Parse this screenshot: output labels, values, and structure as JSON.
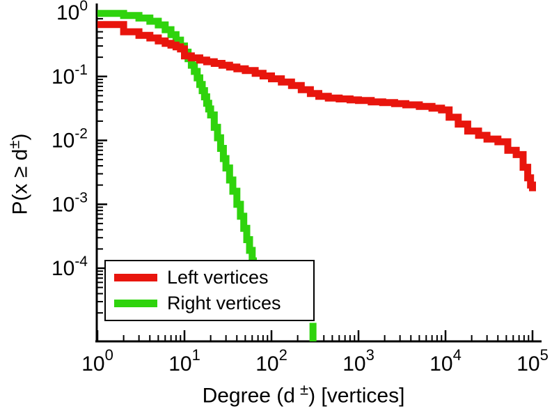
{
  "figure": {
    "background": "#ffffff",
    "axis_color": "#000000",
    "text_color": "#000000"
  },
  "labels": {
    "xlabel_pre": "Degree (d",
    "xlabel_sup": "±",
    "xlabel_post": ") [vertices]",
    "ylabel_pre": "P(x ≥ d",
    "ylabel_sup": "±",
    "ylabel_post": ")"
  },
  "chart_data": {
    "type": "line",
    "subtype": "ccdf-staircase",
    "title": "",
    "xlabel": "Degree (d±) [vertices]",
    "ylabel": "P(x ≥ d±)",
    "x_scale": "log",
    "y_scale": "log",
    "xlim": [
      1,
      100000
    ],
    "ylim": [
      7e-06,
      1
    ],
    "x_tick_exponents": [
      0,
      1,
      2,
      3,
      4,
      5
    ],
    "y_tick_exponents": [
      0,
      -1,
      -2,
      -3,
      -4
    ],
    "grid": false,
    "legend_position": "lower-left",
    "series": [
      {
        "name": "Left vertices",
        "color": "#e8150d",
        "line_width": 10,
        "points": [
          [
            1,
            0.65
          ],
          [
            2,
            0.5
          ],
          [
            3,
            0.44
          ],
          [
            4,
            0.4
          ],
          [
            5,
            0.36
          ],
          [
            6,
            0.33
          ],
          [
            7,
            0.31
          ],
          [
            8,
            0.29
          ],
          [
            9,
            0.27
          ],
          [
            10,
            0.21
          ],
          [
            12,
            0.195
          ],
          [
            15,
            0.18
          ],
          [
            18,
            0.17
          ],
          [
            22,
            0.16
          ],
          [
            27,
            0.15
          ],
          [
            33,
            0.14
          ],
          [
            40,
            0.132
          ],
          [
            50,
            0.124
          ],
          [
            65,
            0.112
          ],
          [
            80,
            0.102
          ],
          [
            100,
            0.092
          ],
          [
            130,
            0.082
          ],
          [
            170,
            0.072
          ],
          [
            220,
            0.062
          ],
          [
            280,
            0.054
          ],
          [
            350,
            0.049
          ],
          [
            450,
            0.046
          ],
          [
            600,
            0.0445
          ],
          [
            800,
            0.043
          ],
          [
            1000,
            0.042
          ],
          [
            1400,
            0.04
          ],
          [
            1900,
            0.039
          ],
          [
            2600,
            0.0375
          ],
          [
            3500,
            0.036
          ],
          [
            5000,
            0.034
          ],
          [
            7000,
            0.032
          ],
          [
            9000,
            0.03
          ],
          [
            11000,
            0.023
          ],
          [
            14000,
            0.018
          ],
          [
            18000,
            0.014
          ],
          [
            24000,
            0.012
          ],
          [
            30000,
            0.0105
          ],
          [
            40000,
            0.0095
          ],
          [
            52000,
            0.007
          ],
          [
            65000,
            0.006
          ],
          [
            78000,
            0.0038
          ],
          [
            88000,
            0.0026
          ],
          [
            95000,
            0.002
          ],
          [
            100000,
            0.0016
          ]
        ]
      },
      {
        "name": "Right vertices",
        "color": "#2fd30d",
        "line_width": 10,
        "points": [
          [
            1,
            0.97
          ],
          [
            2,
            0.9
          ],
          [
            3,
            0.82
          ],
          [
            4,
            0.73
          ],
          [
            5,
            0.64
          ],
          [
            6,
            0.54
          ],
          [
            7,
            0.45
          ],
          [
            8,
            0.37
          ],
          [
            9,
            0.3
          ],
          [
            10,
            0.24
          ],
          [
            11,
            0.19
          ],
          [
            12,
            0.15
          ],
          [
            13,
            0.12
          ],
          [
            14,
            0.095
          ],
          [
            15,
            0.075
          ],
          [
            16,
            0.06
          ],
          [
            17,
            0.048
          ],
          [
            18,
            0.038
          ],
          [
            19,
            0.031
          ],
          [
            20,
            0.025
          ],
          [
            22,
            0.016
          ],
          [
            24,
            0.011
          ],
          [
            26,
            0.0075
          ],
          [
            28,
            0.0052
          ],
          [
            30,
            0.0037
          ],
          [
            33,
            0.0024
          ],
          [
            36,
            0.0016
          ],
          [
            40,
            0.001
          ],
          [
            44,
            0.00065
          ],
          [
            48,
            0.00042
          ],
          [
            52,
            0.00028
          ],
          [
            56,
            0.00019
          ],
          [
            60,
            0.00013
          ],
          [
            62,
            2e-05
          ]
        ],
        "isolated_segment": {
          "x": 300,
          "p_top": 1.4e-05,
          "p_bottom": 7e-06
        }
      }
    ]
  }
}
